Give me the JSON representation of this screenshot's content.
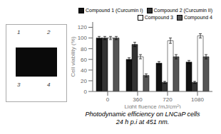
{
  "chart_data": {
    "type": "bar",
    "title": "Photodynamic efficiency on LNCaP cells\n24 h p.i at 451 nm.",
    "xlabel": "Light fluence (mJ/cm²)",
    "ylabel": "Cell viability (%)",
    "categories": [
      "0",
      "360",
      "720",
      "1080"
    ],
    "series": [
      {
        "name": "Compound 1 (Curcumin I)",
        "color": "#111111",
        "values": [
          100,
          60,
          53,
          55
        ],
        "errors": [
          3,
          3,
          3,
          3
        ]
      },
      {
        "name": "Compound 2 (Curcumin II)",
        "color": "#333333",
        "values": [
          100,
          88,
          17,
          17
        ],
        "errors": [
          3,
          4,
          2,
          2
        ]
      },
      {
        "name": "Compound 3",
        "color": "#ffffff",
        "values": [
          100,
          65,
          95,
          104
        ],
        "errors": [
          3,
          4,
          5,
          4
        ]
      },
      {
        "name": "Compound 4",
        "color": "#555555",
        "values": [
          100,
          30,
          65,
          65
        ],
        "errors": [
          3,
          3,
          4,
          4
        ]
      }
    ],
    "ylim": [
      0,
      130
    ],
    "yticks": [
      0,
      20,
      40,
      60,
      80,
      100,
      120
    ],
    "grid": false,
    "legend": "upper right",
    "annotations": [
      "1",
      "2",
      "3",
      "4"
    ]
  }
}
